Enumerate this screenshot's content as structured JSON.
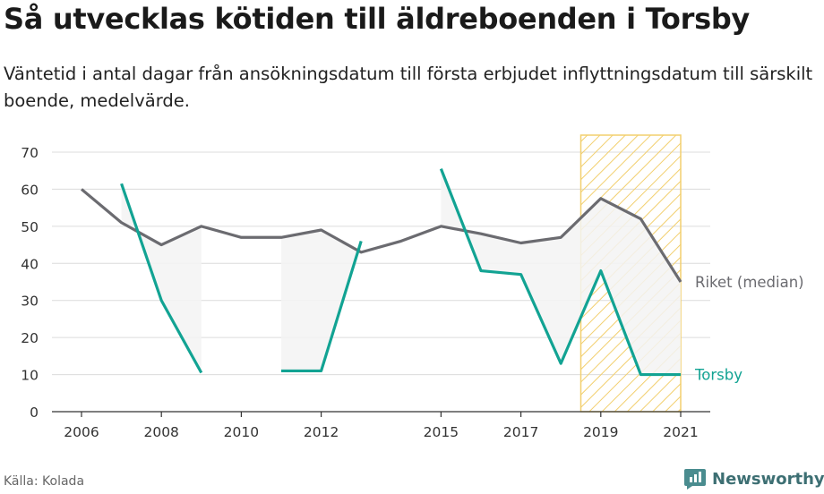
{
  "title": "Så utvecklas kötiden till äldreboenden i Torsby",
  "subtitle": "Väntetid i antal dagar från ansökningsdatum till första erbjudet inflyttningsdatum till särskilt boende, medelvärde.",
  "source": "Källa: Kolada",
  "brand": "Newsworthy",
  "chart_data": {
    "type": "line",
    "ylim": [
      0,
      70
    ],
    "yticks": [
      0,
      10,
      20,
      30,
      40,
      50,
      60,
      70
    ],
    "xlim": [
      2006,
      2021
    ],
    "xticks": [
      "2006",
      "2008",
      "2010",
      "2012",
      "2015",
      "2017",
      "2019",
      "2021"
    ],
    "highlight_range": [
      2018.5,
      2021
    ],
    "series": [
      {
        "name": "Riket (median)",
        "color": "#6b6b70",
        "x": [
          2006,
          2007,
          2008,
          2009,
          2010,
          2011,
          2012,
          2013,
          2014,
          2015,
          2016,
          2017,
          2018,
          2019,
          2020,
          2021
        ],
        "values": [
          60,
          51,
          45,
          50,
          47,
          47,
          49,
          43,
          46,
          50,
          48,
          45.5,
          47,
          57.5,
          52,
          35
        ]
      },
      {
        "name": "Torsby",
        "color": "#12a393",
        "x": [
          2006,
          2007,
          2008,
          2009,
          2010,
          2011,
          2012,
          2013,
          2014,
          2015,
          2016,
          2017,
          2018,
          2019,
          2020,
          2021
        ],
        "values": [
          null,
          61.5,
          30,
          10.5,
          null,
          11,
          11,
          46,
          null,
          65.5,
          38,
          37,
          13,
          38,
          10,
          10
        ]
      }
    ]
  }
}
